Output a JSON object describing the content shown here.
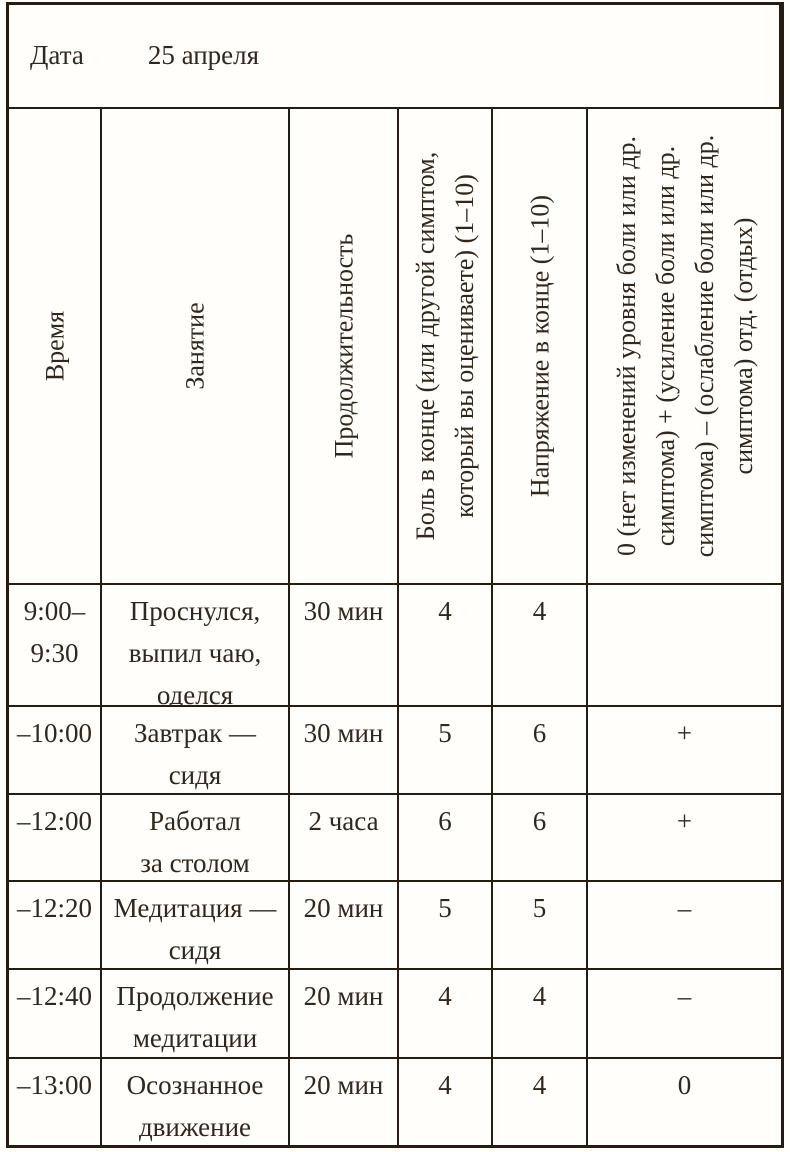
{
  "page": {
    "background": "#fffefb",
    "ink_color": "#32271d",
    "border_color": "#261c12"
  },
  "date_row": {
    "label": "Дата",
    "value": "25 апреля"
  },
  "headers": {
    "time": "Время",
    "activity": "Занятие",
    "duration": "Продолжительность",
    "pain": "Боль в конце (или другой симптом,\nкоторый вы оцениваете) (1–10)",
    "tension": "Напряжение в конце (1–10)",
    "change": "0 (нет изменений уровня боли или др.\nсимптома) + (усиление боли или др.\nсимптома) – (ослабление боли или др.\nсимптома) отд. (отдых)"
  },
  "rows": [
    {
      "time": "9:00–\n9:30",
      "activity": "Проснулся,\nвыпил чаю,\nоделся",
      "duration": "30 мин",
      "pain": "4",
      "tension": "4",
      "change": ""
    },
    {
      "time": "–10:00",
      "activity": "Завтрак —\nсидя",
      "duration": "30 мин",
      "pain": "5",
      "tension": "6",
      "change": "+"
    },
    {
      "time": "–12:00",
      "activity": "Работал\nза столом",
      "duration": "2 часа",
      "pain": "6",
      "tension": "6",
      "change": "+"
    },
    {
      "time": "–12:20",
      "activity": "Медитация —\nсидя",
      "duration": "20 мин",
      "pain": "5",
      "tension": "5",
      "change": "–"
    },
    {
      "time": "–12:40",
      "activity": "Продолжение\nмедитации",
      "duration": "20 мин",
      "pain": "4",
      "tension": "4",
      "change": "–"
    },
    {
      "time": "–13:00",
      "activity": "Осознанное\nдвижение",
      "duration": "20 мин",
      "pain": "4",
      "tension": "4",
      "change": "0"
    }
  ]
}
